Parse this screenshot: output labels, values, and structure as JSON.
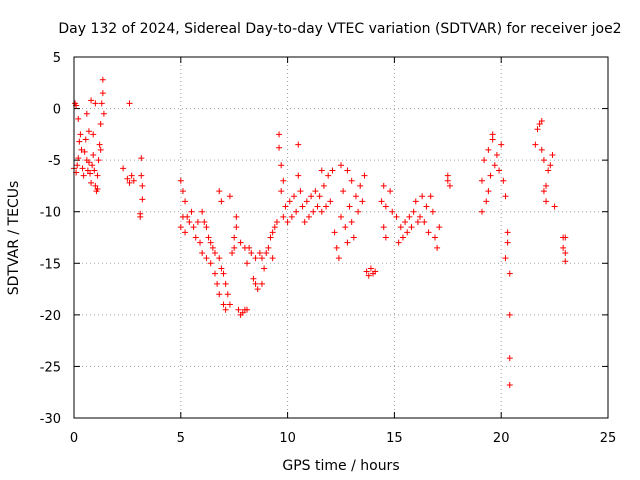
{
  "chart_data": {
    "type": "scatter",
    "title": "Day 132 of 2024, Sidereal Day-to-day VTEC variation (SDTVAR) for receiver joe2",
    "xlabel": "GPS time / hours",
    "ylabel": "SDTVAR / TECUs",
    "xlim": [
      0,
      25
    ],
    "ylim": [
      -30,
      5
    ],
    "xticks": [
      "0",
      "5",
      "10",
      "15",
      "20",
      "25"
    ],
    "yticks": [
      "5",
      "0",
      "-5",
      "-10",
      "-15",
      "-20",
      "-25",
      "-30"
    ],
    "grid": true,
    "marker": "plus",
    "color": "#ff0000",
    "series": [
      {
        "name": "SDTVAR",
        "points": [
          [
            0.0,
            -5.8
          ],
          [
            0.05,
            0.5
          ],
          [
            0.1,
            0.3
          ],
          [
            0.1,
            -6.2
          ],
          [
            0.15,
            -5.5
          ],
          [
            0.2,
            -4.8
          ],
          [
            0.25,
            -3.2
          ],
          [
            0.3,
            -2.5
          ],
          [
            0.35,
            -4.0
          ],
          [
            0.4,
            -5.8
          ],
          [
            0.45,
            -6.5
          ],
          [
            0.5,
            -4.2
          ],
          [
            0.55,
            -3.0
          ],
          [
            0.6,
            -5.0
          ],
          [
            0.65,
            -6.0
          ],
          [
            0.7,
            -5.2
          ],
          [
            0.75,
            -6.3
          ],
          [
            0.8,
            -7.2
          ],
          [
            0.85,
            -5.5
          ],
          [
            0.9,
            -2.5
          ],
          [
            0.95,
            -6.0
          ],
          [
            1.0,
            -7.5
          ],
          [
            1.05,
            -8.0
          ],
          [
            1.1,
            -6.5
          ],
          [
            1.15,
            -5.0
          ],
          [
            1.2,
            -3.5
          ],
          [
            1.25,
            -1.5
          ],
          [
            1.3,
            0.5
          ],
          [
            1.35,
            1.5
          ],
          [
            1.35,
            2.8
          ],
          [
            1.4,
            -0.5
          ],
          [
            0.2,
            -1.0
          ],
          [
            0.6,
            -0.5
          ],
          [
            0.8,
            0.8
          ],
          [
            1.0,
            0.5
          ],
          [
            0.7,
            -2.2
          ],
          [
            0.9,
            -4.5
          ],
          [
            1.1,
            -7.8
          ],
          [
            1.25,
            -4.0
          ],
          [
            2.3,
            -5.8
          ],
          [
            2.6,
            0.5
          ],
          [
            2.5,
            -6.8
          ],
          [
            2.6,
            -7.2
          ],
          [
            2.7,
            -6.5
          ],
          [
            2.8,
            -7.0
          ],
          [
            3.1,
            -10.2
          ],
          [
            3.1,
            -10.5
          ],
          [
            3.15,
            -4.8
          ],
          [
            3.15,
            -6.5
          ],
          [
            3.2,
            -7.5
          ],
          [
            3.2,
            -8.8
          ],
          [
            5.0,
            -7.0
          ],
          [
            5.0,
            -11.5
          ],
          [
            5.1,
            -8.0
          ],
          [
            5.1,
            -10.5
          ],
          [
            5.2,
            -9.0
          ],
          [
            5.2,
            -12.0
          ],
          [
            5.3,
            -10.5
          ],
          [
            5.4,
            -11.0
          ],
          [
            5.5,
            -10.0
          ],
          [
            5.6,
            -11.5
          ],
          [
            5.7,
            -12.5
          ],
          [
            5.8,
            -11.0
          ],
          [
            5.9,
            -13.0
          ],
          [
            6.0,
            -10.0
          ],
          [
            6.0,
            -14.0
          ],
          [
            6.1,
            -11.0
          ],
          [
            6.2,
            -14.5
          ],
          [
            6.2,
            -11.5
          ],
          [
            6.3,
            -12.5
          ],
          [
            6.4,
            -15.0
          ],
          [
            6.4,
            -13.0
          ],
          [
            6.5,
            -13.5
          ],
          [
            6.6,
            -16.0
          ],
          [
            6.6,
            -14.0
          ],
          [
            6.7,
            -17.0
          ],
          [
            6.8,
            -14.5
          ],
          [
            6.8,
            -18.0
          ],
          [
            6.9,
            -15.5
          ],
          [
            7.0,
            -19.0
          ],
          [
            7.0,
            -16.0
          ],
          [
            7.1,
            -19.5
          ],
          [
            7.1,
            -17.0
          ],
          [
            7.2,
            -18.0
          ],
          [
            7.3,
            -19.0
          ],
          [
            7.4,
            -14.0
          ],
          [
            7.5,
            -12.5
          ],
          [
            7.6,
            -11.5
          ],
          [
            7.7,
            -19.5
          ],
          [
            7.8,
            -20.0
          ],
          [
            7.9,
            -19.8
          ],
          [
            8.0,
            -19.5
          ],
          [
            8.1,
            -19.5
          ],
          [
            6.9,
            -9.0
          ],
          [
            6.8,
            -8.0
          ],
          [
            7.3,
            -8.5
          ],
          [
            7.5,
            -13.5
          ],
          [
            7.6,
            -10.5
          ],
          [
            7.8,
            -13.0
          ],
          [
            8.0,
            -13.5
          ],
          [
            8.1,
            -15.0
          ],
          [
            8.2,
            -13.5
          ],
          [
            8.3,
            -14.0
          ],
          [
            8.4,
            -16.5
          ],
          [
            8.5,
            -17.0
          ],
          [
            8.5,
            -14.5
          ],
          [
            8.6,
            -17.5
          ],
          [
            8.7,
            -14.0
          ],
          [
            8.8,
            -17.0
          ],
          [
            8.8,
            -14.5
          ],
          [
            8.9,
            -15.5
          ],
          [
            9.0,
            -14.0
          ],
          [
            9.1,
            -13.5
          ],
          [
            9.2,
            -12.5
          ],
          [
            9.3,
            -12.0
          ],
          [
            9.3,
            -14.5
          ],
          [
            9.4,
            -11.5
          ],
          [
            9.5,
            -11.0
          ],
          [
            9.6,
            -3.8
          ],
          [
            9.6,
            -2.5
          ],
          [
            9.7,
            -5.5
          ],
          [
            9.7,
            -8.0
          ],
          [
            9.8,
            -10.5
          ],
          [
            9.9,
            -9.5
          ],
          [
            10.0,
            -11.0
          ],
          [
            10.1,
            -9.0
          ],
          [
            10.2,
            -10.5
          ],
          [
            10.3,
            -8.5
          ],
          [
            10.4,
            -10.0
          ],
          [
            10.5,
            -6.5
          ],
          [
            10.6,
            -8.0
          ],
          [
            10.7,
            -9.5
          ],
          [
            10.8,
            -11.0
          ],
          [
            10.9,
            -9.0
          ],
          [
            11.0,
            -10.5
          ],
          [
            11.1,
            -8.5
          ],
          [
            11.2,
            -10.0
          ],
          [
            11.3,
            -8.0
          ],
          [
            11.4,
            -9.5
          ],
          [
            11.5,
            -8.5
          ],
          [
            11.6,
            -10.0
          ],
          [
            11.7,
            -7.5
          ],
          [
            11.8,
            -9.5
          ],
          [
            11.9,
            -6.5
          ],
          [
            12.0,
            -9.0
          ],
          [
            12.1,
            -6.0
          ],
          [
            12.2,
            -12.0
          ],
          [
            12.3,
            -13.5
          ],
          [
            12.4,
            -14.5
          ],
          [
            12.5,
            -5.5
          ],
          [
            12.5,
            -10.5
          ],
          [
            12.6,
            -8.0
          ],
          [
            12.7,
            -11.5
          ],
          [
            12.8,
            -13.0
          ],
          [
            12.9,
            -9.5
          ],
          [
            13.0,
            -11.0
          ],
          [
            13.1,
            -12.5
          ],
          [
            13.2,
            -8.5
          ],
          [
            13.3,
            -10.0
          ],
          [
            13.4,
            -7.5
          ],
          [
            13.5,
            -9.0
          ],
          [
            13.6,
            -6.5
          ],
          [
            13.7,
            -15.8
          ],
          [
            13.8,
            -16.2
          ],
          [
            13.9,
            -15.5
          ],
          [
            14.0,
            -16.0
          ],
          [
            14.1,
            -15.8
          ],
          [
            13.0,
            -7.0
          ],
          [
            12.8,
            -6.0
          ],
          [
            11.6,
            -6.0
          ],
          [
            10.5,
            -3.5
          ],
          [
            9.8,
            -7.0
          ],
          [
            14.4,
            -9.0
          ],
          [
            14.5,
            -11.5
          ],
          [
            14.5,
            -7.5
          ],
          [
            14.6,
            -12.5
          ],
          [
            14.6,
            -9.5
          ],
          [
            14.8,
            -8.0
          ],
          [
            14.9,
            -10.0
          ],
          [
            15.1,
            -10.5
          ],
          [
            15.2,
            -13.0
          ],
          [
            15.3,
            -11.5
          ],
          [
            15.4,
            -12.5
          ],
          [
            15.5,
            -11.0
          ],
          [
            15.6,
            -12.0
          ],
          [
            15.7,
            -10.5
          ],
          [
            15.8,
            -11.5
          ],
          [
            15.9,
            -10.0
          ],
          [
            16.0,
            -9.0
          ],
          [
            16.1,
            -11.0
          ],
          [
            16.2,
            -10.5
          ],
          [
            16.3,
            -8.5
          ],
          [
            16.4,
            -11.0
          ],
          [
            16.5,
            -9.5
          ],
          [
            16.6,
            -12.0
          ],
          [
            16.7,
            -8.5
          ],
          [
            16.8,
            -10.0
          ],
          [
            16.9,
            -12.5
          ],
          [
            17.0,
            -13.5
          ],
          [
            17.1,
            -11.5
          ],
          [
            17.5,
            -6.5
          ],
          [
            17.6,
            -7.5
          ],
          [
            17.5,
            -7.0
          ],
          [
            19.1,
            -10.0
          ],
          [
            19.1,
            -7.0
          ],
          [
            19.2,
            -5.0
          ],
          [
            19.3,
            -9.0
          ],
          [
            19.4,
            -4.0
          ],
          [
            19.5,
            -6.5
          ],
          [
            19.6,
            -3.0
          ],
          [
            19.7,
            -5.5
          ],
          [
            19.8,
            -4.5
          ],
          [
            19.9,
            -6.0
          ],
          [
            20.0,
            -3.5
          ],
          [
            20.1,
            -7.0
          ],
          [
            20.2,
            -8.5
          ],
          [
            20.2,
            -14.5
          ],
          [
            20.3,
            -12.0
          ],
          [
            20.3,
            -13.0
          ],
          [
            20.4,
            -16.0
          ],
          [
            20.4,
            -20.0
          ],
          [
            20.4,
            -24.2
          ],
          [
            20.4,
            -26.8
          ],
          [
            19.6,
            -2.5
          ],
          [
            19.4,
            -8.0
          ],
          [
            21.6,
            -3.5
          ],
          [
            21.7,
            -2.0
          ],
          [
            21.8,
            -1.5
          ],
          [
            21.9,
            -4.0
          ],
          [
            22.0,
            -5.0
          ],
          [
            22.1,
            -7.5
          ],
          [
            22.1,
            -9.0
          ],
          [
            22.2,
            -6.0
          ],
          [
            22.3,
            -5.5
          ],
          [
            22.4,
            -4.5
          ],
          [
            22.5,
            -9.5
          ],
          [
            21.9,
            -1.2
          ],
          [
            22.0,
            -8.0
          ],
          [
            22.9,
            -12.5
          ],
          [
            22.9,
            -13.5
          ],
          [
            23.0,
            -14.0
          ],
          [
            23.0,
            -14.8
          ],
          [
            23.0,
            -12.5
          ]
        ]
      }
    ]
  }
}
